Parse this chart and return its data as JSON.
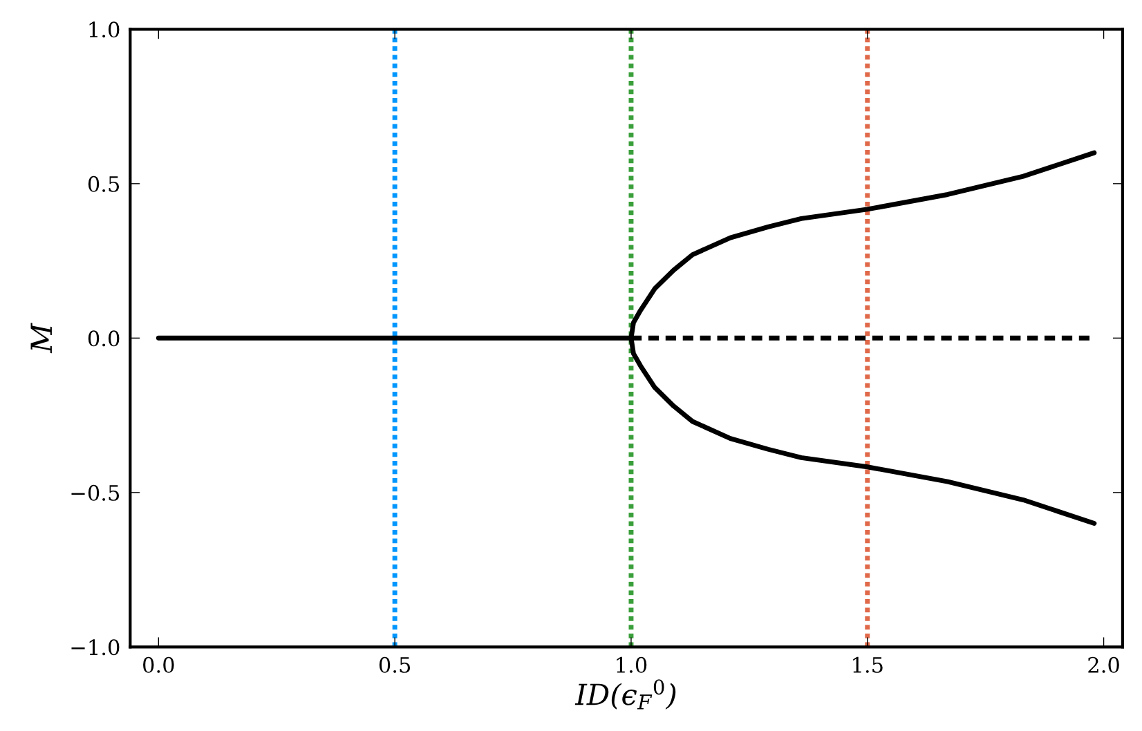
{
  "chart_data": {
    "type": "line",
    "xlabel": "ID(ϵ$_{F}$$^{0}$)",
    "ylabel": "M",
    "xlim": [
      -0.06,
      2.04
    ],
    "ylim": [
      -1.0,
      1.0
    ],
    "xticks": [
      {
        "value": 0,
        "label": "0.0"
      },
      0.5,
      {
        "value": 1,
        "label": "1.0"
      },
      1.5,
      {
        "value": 2,
        "label": "2.0"
      }
    ],
    "yticks": [
      {
        "value": -1.0,
        "label": "−1.0"
      },
      {
        "value": -0.5,
        "label": "−0.5"
      },
      {
        "value": 0,
        "label": "0.0"
      },
      0.5,
      {
        "value": 1,
        "label": "1.0"
      }
    ],
    "grid": false,
    "marker": "none",
    "series": [
      {
        "color": "#000000",
        "line_style": "solid",
        "x": [
          0.0,
          1.0
        ],
        "values": [
          0.0,
          0.0
        ]
      },
      {
        "color": "#000000",
        "line_style": "dashed",
        "x": [
          1.0,
          1.97
        ],
        "values": [
          0.0,
          0.0
        ]
      },
      {
        "color": "#000000",
        "line_style": "solid",
        "x": [
          1.98,
          1.83,
          1.67,
          1.5,
          1.36,
          1.29,
          1.21,
          1.13,
          1.09,
          1.05,
          1.02,
          1.005,
          1.0,
          1.005,
          1.02,
          1.05,
          1.09,
          1.13,
          1.21,
          1.29,
          1.36,
          1.5,
          1.67,
          1.83,
          1.98
        ],
        "values": [
          -0.6,
          -0.524,
          -0.465,
          -0.417,
          -0.387,
          -0.36,
          -0.325,
          -0.27,
          -0.22,
          -0.16,
          -0.09,
          -0.05,
          0.0,
          0.05,
          0.09,
          0.16,
          0.22,
          0.27,
          0.325,
          0.36,
          0.387,
          0.417,
          0.465,
          0.524,
          0.6
        ]
      }
    ],
    "ref_lines": [
      {
        "axis": "x",
        "value": 0.5,
        "color": "#0096ff",
        "line_style": "dotted"
      },
      {
        "axis": "x",
        "value": 1.0,
        "color": "#3a9f3a",
        "line_style": "dotted"
      },
      {
        "axis": "x",
        "value": 1.5,
        "color": "#e0694a",
        "line_style": "dotted"
      }
    ]
  }
}
